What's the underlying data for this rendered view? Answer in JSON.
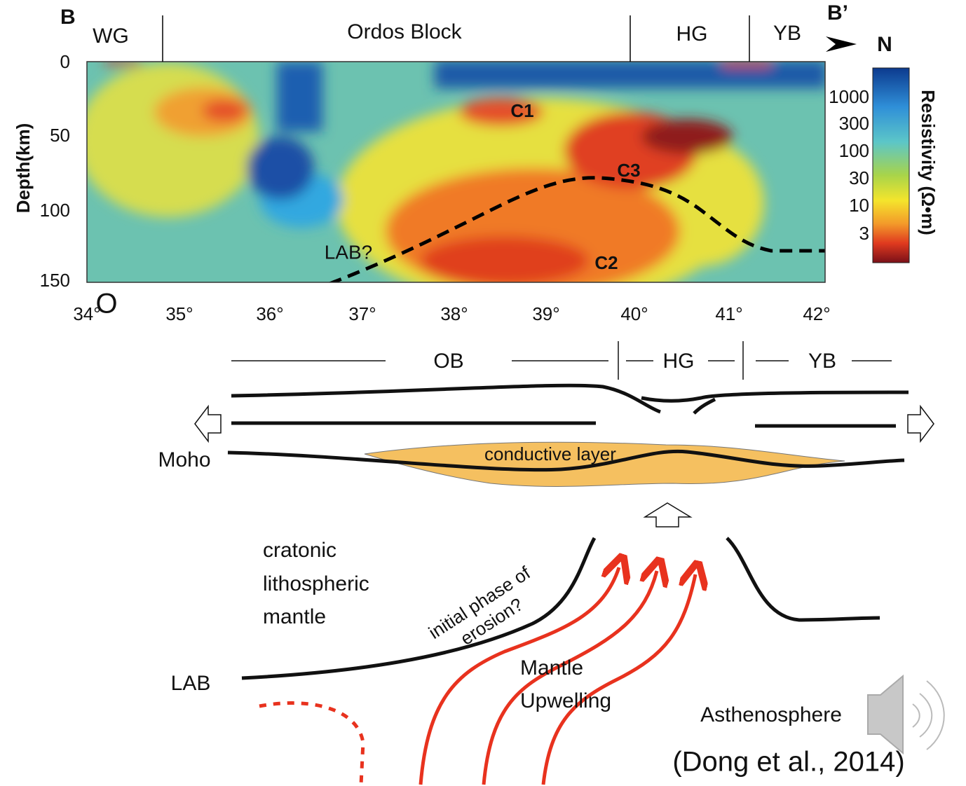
{
  "panel": {
    "label_left": "B",
    "label_right": "B’",
    "north": "N",
    "regions": [
      "WG",
      "Ordos Block",
      "HG",
      "YB"
    ],
    "y_title": "Depth(km)",
    "y_ticks": [
      "0",
      "50",
      "100",
      "150"
    ],
    "x_ticks": [
      "34°",
      "35°",
      "36°",
      "37°",
      "38°",
      "39°",
      "40°",
      "41°",
      "42°"
    ],
    "colorbar_title": "Resistivity (Ω•m)",
    "colorbar_ticks": [
      "1000",
      "300",
      "100",
      "30",
      "10",
      "3"
    ],
    "anomalies": [
      "C1",
      "C3",
      "C2"
    ],
    "lab_label": "LAB?",
    "marker": "O"
  },
  "diagram": {
    "regions": [
      "OB",
      "HG",
      "YB"
    ],
    "moho": "Moho",
    "conductive_layer": "conductive layer",
    "mantle_lines": [
      "cratonic",
      "lithospheric",
      "mantle"
    ],
    "erosion_lines": [
      "initial phase of",
      "erosion?"
    ],
    "upwelling_lines": [
      "Mantle",
      "Upwelling"
    ],
    "lab": "LAB",
    "asthenosphere": "Asthenosphere"
  },
  "citation": "(Dong et al., 2014)"
}
